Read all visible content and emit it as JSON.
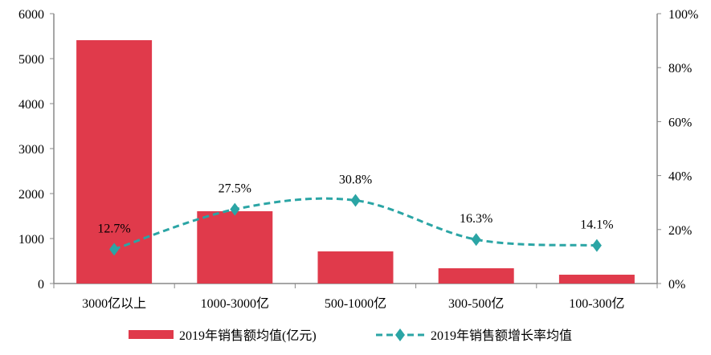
{
  "chart_data": {
    "type": "bar+line",
    "categories": [
      "3000亿以上",
      "1000-3000亿",
      "500-1000亿",
      "300-500亿",
      "100-300亿"
    ],
    "series": [
      {
        "name": "2019年销售额均值(亿元)",
        "type": "bar",
        "axis": "left",
        "values": [
          5410,
          1607,
          714,
          339,
          196
        ],
        "color": "#E03A4B"
      },
      {
        "name": "2019年销售额增长率均值",
        "type": "line",
        "axis": "right",
        "values": [
          12.7,
          27.5,
          30.8,
          16.3,
          14.1
        ],
        "labels": [
          "12.7%",
          "27.5%",
          "30.8%",
          "16.3%",
          "14.1%"
        ],
        "color": "#2BA5A5",
        "style": "dashed-smooth",
        "marker": "diamond"
      }
    ],
    "yleft": {
      "lim": [
        0,
        6000
      ],
      "ticks": [
        "0",
        "1000",
        "2000",
        "3000",
        "4000",
        "5000",
        "6000"
      ]
    },
    "yright": {
      "lim": [
        0,
        100
      ],
      "ticks": [
        "0%",
        "20%",
        "40%",
        "60%",
        "80%",
        "100%"
      ]
    },
    "grid": false,
    "legend": "bottom"
  }
}
